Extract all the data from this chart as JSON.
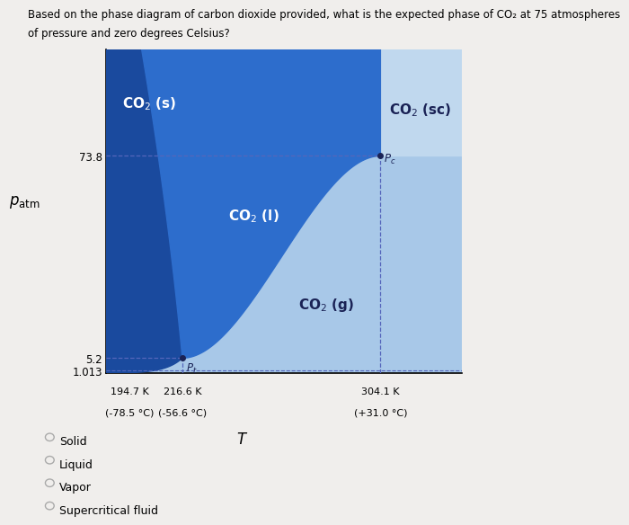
{
  "title_line1": "Based on the phase diagram of carbon dioxide provided, what is the expected phase of CO₂ at 75 atmospheres",
  "title_line2": "of pressure and zero degrees Celsius?",
  "bg_color": "#f0eeec",
  "solid_color": "#1a4a9e",
  "liquid_color": "#2d6dcc",
  "gas_color": "#a8c8e8",
  "sc_color": "#c0d8ee",
  "x_ticks": [
    194.7,
    216.6,
    304.1
  ],
  "x_tick_labels_line1": [
    "194.7 K",
    "216.6 K",
    "304.1 K"
  ],
  "x_tick_labels_line2": [
    "(-78.5 °C)",
    "(-56.6 °C)",
    "(+31.0 °C)"
  ],
  "y_ticks": [
    1.013,
    5.2,
    73.8
  ],
  "triple_point_T": 216.6,
  "triple_point_P": 5.2,
  "critical_point_T": 304.1,
  "critical_point_P": 73.8,
  "x_min": 183,
  "x_max": 340,
  "y_min": 0,
  "y_max": 110,
  "dashed_color": "#5566bb",
  "dot_color": "#1a2255",
  "label_solid": "CO₂ (s)",
  "label_liquid": "CO₂ (l)",
  "label_gas": "CO₂ (g)",
  "label_sc": "CO₂ (sc)",
  "options": [
    "Solid",
    "Liquid",
    "Vapor",
    "Supercritical fluid"
  ]
}
